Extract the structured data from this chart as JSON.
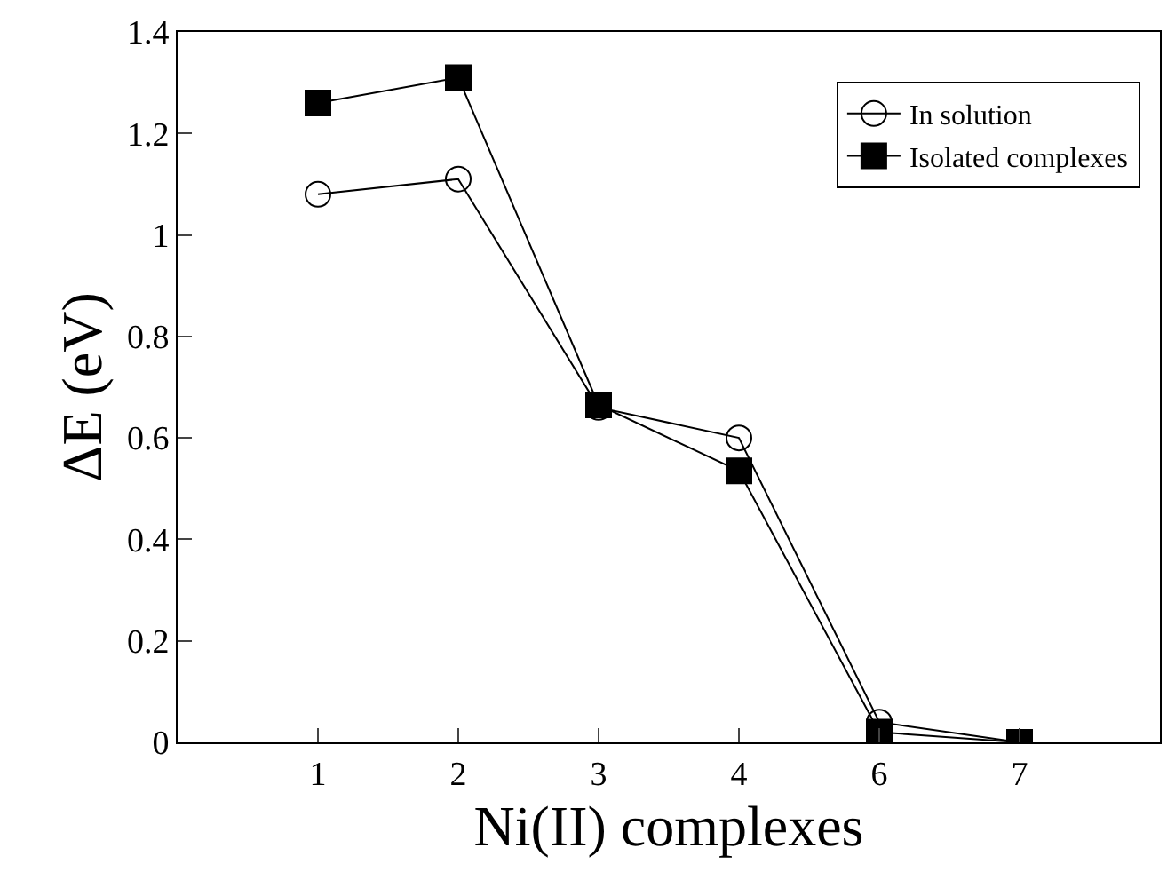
{
  "chart_data": {
    "type": "line",
    "xlabel": "Ni(II) complexes",
    "ylabel": "ΔE (eV)",
    "categories": [
      "1",
      "2",
      "3",
      "4",
      "6",
      "7"
    ],
    "series": [
      {
        "name": "In solution",
        "color": "#000000",
        "marker": "circle",
        "values": [
          1.08,
          1.11,
          0.66,
          0.6,
          0.04,
          0.0
        ]
      },
      {
        "name": "Isolated complexes",
        "color": "#000000",
        "marker": "square",
        "values": [
          1.26,
          1.31,
          0.665,
          0.535,
          0.02,
          0.0
        ]
      }
    ],
    "ylim": [
      0,
      1.4
    ],
    "yticks": [
      0,
      0.2,
      0.4,
      0.6,
      0.8,
      1,
      1.2,
      1.4
    ],
    "legend": "top right",
    "line_style": "solid"
  }
}
